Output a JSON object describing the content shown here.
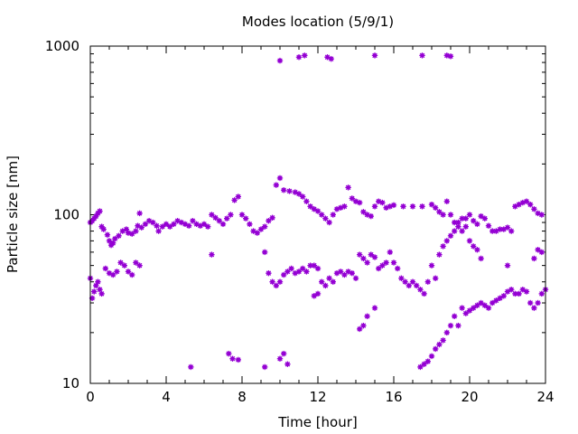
{
  "chart_data": {
    "type": "scatter",
    "title": "Modes location (5/9/1)",
    "xlabel": "Time [hour]",
    "ylabel": "Particle size [nm]",
    "xlim": [
      0,
      24
    ],
    "ylim": [
      10,
      1000
    ],
    "yscale": "log",
    "grid": false,
    "legend": "none",
    "marker_color": "#9400d3",
    "x_ticks": [
      0,
      4,
      8,
      12,
      16,
      20,
      24
    ],
    "x_tick_labels": [
      "0",
      "4",
      "8",
      "12",
      "16",
      "20",
      "24"
    ],
    "y_ticks": [
      10,
      100,
      1000
    ],
    "y_tick_labels": [
      "10",
      "100",
      "1000"
    ],
    "series": [
      {
        "points": [
          [
            0.0,
            90
          ],
          [
            0.1,
            92
          ],
          [
            0.2,
            95
          ],
          [
            0.3,
            98
          ],
          [
            0.4,
            102
          ],
          [
            0.5,
            105
          ],
          [
            0.6,
            85
          ],
          [
            0.7,
            82
          ],
          [
            0.9,
            76
          ],
          [
            1.0,
            70
          ],
          [
            1.1,
            66
          ],
          [
            1.2,
            68
          ],
          [
            1.3,
            72
          ],
          [
            1.5,
            75
          ],
          [
            1.7,
            80
          ],
          [
            1.9,
            82
          ],
          [
            2.0,
            78
          ],
          [
            2.2,
            77
          ],
          [
            2.4,
            80
          ],
          [
            2.5,
            86
          ],
          [
            2.6,
            102
          ],
          [
            2.7,
            84
          ],
          [
            2.9,
            88
          ],
          [
            3.1,
            92
          ],
          [
            3.3,
            90
          ],
          [
            3.5,
            86
          ],
          [
            3.6,
            80
          ],
          [
            3.8,
            85
          ],
          [
            4.0,
            88
          ],
          [
            4.2,
            85
          ],
          [
            4.4,
            88
          ],
          [
            4.6,
            92
          ],
          [
            4.8,
            90
          ],
          [
            5.0,
            88
          ],
          [
            5.2,
            86
          ],
          [
            5.4,
            92
          ],
          [
            5.6,
            88
          ],
          [
            5.8,
            86
          ],
          [
            6.0,
            88
          ],
          [
            6.2,
            85
          ],
          [
            6.4,
            100
          ],
          [
            6.6,
            96
          ],
          [
            6.8,
            92
          ],
          [
            7.0,
            88
          ],
          [
            7.2,
            95
          ],
          [
            7.4,
            100
          ],
          [
            7.6,
            122
          ],
          [
            7.8,
            128
          ],
          [
            8.0,
            100
          ],
          [
            8.2,
            95
          ],
          [
            8.4,
            88
          ],
          [
            8.6,
            80
          ],
          [
            8.8,
            78
          ],
          [
            9.0,
            82
          ],
          [
            9.2,
            85
          ],
          [
            9.4,
            92
          ],
          [
            9.6,
            96
          ],
          [
            9.8,
            150
          ],
          [
            10.0,
            165
          ],
          [
            10.2,
            140
          ],
          [
            10.5,
            138
          ],
          [
            10.8,
            136
          ],
          [
            11.0,
            133
          ],
          [
            11.2,
            128
          ],
          [
            11.4,
            120
          ],
          [
            11.6,
            112
          ],
          [
            11.8,
            108
          ],
          [
            12.0,
            105
          ],
          [
            12.2,
            100
          ],
          [
            12.4,
            95
          ],
          [
            12.6,
            90
          ],
          [
            12.8,
            100
          ],
          [
            13.0,
            108
          ],
          [
            13.2,
            110
          ],
          [
            13.4,
            112
          ],
          [
            13.6,
            145
          ],
          [
            13.8,
            125
          ],
          [
            14.0,
            120
          ],
          [
            14.2,
            118
          ],
          [
            14.4,
            104
          ],
          [
            14.6,
            100
          ],
          [
            14.8,
            98
          ],
          [
            15.0,
            112
          ],
          [
            15.2,
            120
          ],
          [
            15.4,
            118
          ],
          [
            15.6,
            110
          ],
          [
            15.8,
            112
          ],
          [
            16.0,
            114
          ],
          [
            16.5,
            112
          ],
          [
            17.0,
            112
          ],
          [
            17.5,
            112
          ],
          [
            18.0,
            115
          ],
          [
            18.2,
            110
          ],
          [
            18.4,
            104
          ],
          [
            18.6,
            100
          ],
          [
            18.8,
            120
          ],
          [
            19.0,
            100
          ],
          [
            19.2,
            90
          ],
          [
            19.4,
            85
          ],
          [
            19.6,
            80
          ],
          [
            19.8,
            95
          ],
          [
            20.0,
            100
          ],
          [
            20.2,
            92
          ],
          [
            20.4,
            88
          ],
          [
            20.6,
            98
          ],
          [
            20.8,
            95
          ],
          [
            21.0,
            86
          ],
          [
            21.2,
            80
          ],
          [
            21.4,
            80
          ],
          [
            21.6,
            82
          ],
          [
            21.8,
            82
          ],
          [
            22.0,
            84
          ],
          [
            22.2,
            80
          ],
          [
            22.4,
            112
          ],
          [
            22.6,
            115
          ],
          [
            22.8,
            118
          ],
          [
            23.0,
            120
          ],
          [
            23.2,
            115
          ],
          [
            23.4,
            108
          ],
          [
            23.6,
            102
          ],
          [
            23.8,
            100
          ]
        ]
      },
      {
        "points": [
          [
            0.0,
            42
          ],
          [
            0.1,
            32
          ],
          [
            0.2,
            35
          ],
          [
            0.3,
            38
          ],
          [
            0.4,
            40
          ],
          [
            0.5,
            36
          ],
          [
            0.6,
            34
          ],
          [
            0.8,
            48
          ],
          [
            1.0,
            45
          ],
          [
            1.2,
            44
          ],
          [
            1.4,
            46
          ],
          [
            1.6,
            52
          ],
          [
            1.8,
            50
          ],
          [
            2.0,
            46
          ],
          [
            2.2,
            44
          ],
          [
            2.4,
            52
          ],
          [
            2.6,
            50
          ],
          [
            6.4,
            58
          ],
          [
            9.2,
            60
          ],
          [
            9.4,
            45
          ],
          [
            9.6,
            40
          ],
          [
            9.8,
            38
          ],
          [
            10.0,
            40
          ],
          [
            10.2,
            44
          ],
          [
            10.4,
            46
          ],
          [
            10.6,
            48
          ],
          [
            10.8,
            45
          ],
          [
            11.0,
            46
          ],
          [
            11.2,
            48
          ],
          [
            11.4,
            46
          ],
          [
            11.6,
            50
          ],
          [
            11.8,
            50
          ],
          [
            12.0,
            48
          ],
          [
            12.2,
            40
          ],
          [
            12.4,
            38
          ],
          [
            12.6,
            42
          ],
          [
            12.8,
            40
          ],
          [
            13.0,
            45
          ],
          [
            13.2,
            46
          ],
          [
            13.4,
            44
          ],
          [
            13.6,
            46
          ],
          [
            13.8,
            45
          ],
          [
            14.0,
            42
          ],
          [
            14.2,
            58
          ],
          [
            14.4,
            55
          ],
          [
            14.6,
            52
          ],
          [
            14.8,
            58
          ],
          [
            15.0,
            56
          ],
          [
            15.2,
            48
          ],
          [
            15.4,
            50
          ],
          [
            15.6,
            52
          ],
          [
            15.8,
            60
          ],
          [
            16.0,
            52
          ],
          [
            16.2,
            48
          ],
          [
            16.4,
            42
          ],
          [
            16.6,
            40
          ],
          [
            16.8,
            38
          ],
          [
            17.0,
            40
          ],
          [
            17.2,
            38
          ],
          [
            17.4,
            36
          ],
          [
            17.6,
            34
          ],
          [
            17.8,
            40
          ],
          [
            18.0,
            50
          ],
          [
            18.2,
            42
          ],
          [
            18.4,
            58
          ],
          [
            18.6,
            65
          ],
          [
            18.8,
            70
          ],
          [
            19.0,
            75
          ],
          [
            19.2,
            80
          ],
          [
            19.4,
            90
          ],
          [
            19.6,
            95
          ],
          [
            19.8,
            85
          ],
          [
            20.0,
            70
          ],
          [
            20.2,
            65
          ],
          [
            20.4,
            62
          ],
          [
            20.6,
            55
          ],
          [
            22.0,
            50
          ],
          [
            23.4,
            55
          ],
          [
            23.6,
            62
          ],
          [
            23.8,
            60
          ]
        ]
      },
      {
        "points": [
          [
            11.8,
            33
          ],
          [
            12.0,
            34
          ],
          [
            14.2,
            21
          ],
          [
            14.4,
            22
          ],
          [
            14.6,
            25
          ],
          [
            15.0,
            28
          ],
          [
            17.4,
            12.5
          ],
          [
            17.6,
            13
          ],
          [
            17.8,
            13.5
          ],
          [
            18.0,
            14.5
          ],
          [
            18.2,
            16
          ],
          [
            18.4,
            17
          ],
          [
            18.6,
            18
          ],
          [
            18.8,
            20
          ],
          [
            19.0,
            22
          ],
          [
            19.2,
            25
          ],
          [
            19.4,
            22
          ],
          [
            19.6,
            28
          ],
          [
            19.8,
            26
          ],
          [
            20.0,
            27
          ],
          [
            20.2,
            28
          ],
          [
            20.4,
            29
          ],
          [
            20.6,
            30
          ],
          [
            20.8,
            29
          ],
          [
            21.0,
            28
          ],
          [
            21.2,
            30
          ],
          [
            21.4,
            31
          ],
          [
            21.6,
            32
          ],
          [
            21.8,
            33
          ],
          [
            22.0,
            35
          ],
          [
            22.2,
            36
          ],
          [
            22.4,
            34
          ],
          [
            22.6,
            34
          ],
          [
            22.8,
            36
          ],
          [
            23.0,
            35
          ],
          [
            23.2,
            30
          ],
          [
            23.4,
            28
          ],
          [
            23.6,
            30
          ],
          [
            23.8,
            34
          ],
          [
            24.0,
            36
          ]
        ]
      },
      {
        "points": [
          [
            5.3,
            12.5
          ],
          [
            7.3,
            15
          ],
          [
            7.5,
            14
          ],
          [
            7.8,
            13.8
          ],
          [
            9.2,
            12.5
          ],
          [
            10.0,
            14
          ],
          [
            10.2,
            15
          ],
          [
            10.4,
            13
          ]
        ]
      },
      {
        "points": [
          [
            10.0,
            820
          ],
          [
            11.0,
            860
          ],
          [
            11.3,
            880
          ],
          [
            12.5,
            860
          ],
          [
            12.7,
            840
          ],
          [
            15.0,
            880
          ],
          [
            17.5,
            880
          ],
          [
            18.8,
            880
          ],
          [
            19.0,
            870
          ]
        ]
      }
    ]
  }
}
